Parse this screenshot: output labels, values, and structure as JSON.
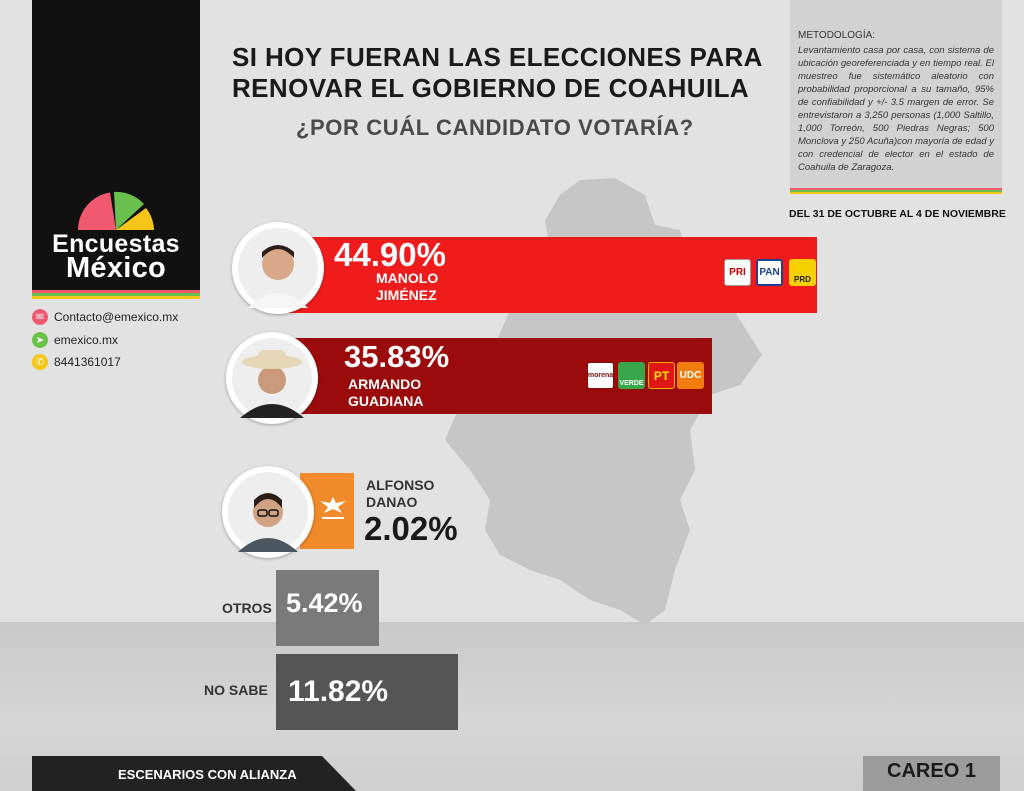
{
  "brand": {
    "name_line1": "Encuestas",
    "name_line2": "México",
    "colors": [
      "#f0596f",
      "#6ac04c",
      "#f5c518"
    ]
  },
  "contacts": [
    {
      "icon": "email-icon",
      "text": "Contacto@emexico.mx",
      "color": "#f0596f"
    },
    {
      "icon": "cursor-icon",
      "text": "emexico.mx",
      "color": "#6ac04c"
    },
    {
      "icon": "phone-icon",
      "text": "8441361017",
      "color": "#f5c518"
    }
  ],
  "title": {
    "line1": "SI HOY FUERAN LAS ELECCIONES PARA",
    "line2": "RENOVAR EL GOBIERNO DE COAHUILA",
    "question": "¿POR CUÁL CANDIDATO VOTARÍA?"
  },
  "methodology": {
    "heading": "METODOLOGÍA:",
    "text": "Levantamiento casa por casa, con sistema de ubicación georeferenciada y en tiempo real. El muestreo fue sistemático aleatorio con probabilidad proporcional a su tamaño, 95% de confiabilidad y +/- 3.5 margen de error. Se entrevistaron a 3,250 personas (1,000 Saltillo, 1,000 Torreón, 500 Piedras Negras; 500 Monclova y 250 Acuña)con mayoría de edad y con credencial de elector en el estado de Coahuila de Zaragoza.",
    "period": "DEL 31 DE OCTUBRE AL 4 DE NOVIEMBRE"
  },
  "chart_data": {
    "type": "bar",
    "categories": [
      "MANOLO JIMÉNEZ",
      "ARMANDO GUADIANA",
      "ALFONSO DANAO",
      "OTROS",
      "NO SABE"
    ],
    "values": [
      44.9,
      35.83,
      2.02,
      5.42,
      11.82
    ],
    "labels": [
      "44.90%",
      "35.83%",
      "2.02%",
      "5.42%",
      "11.82%"
    ],
    "colors": [
      "#f01c1c",
      "#9b0b0b",
      "#f08a2a",
      "#7a7a7a",
      "#555555"
    ],
    "candidates": [
      {
        "name_line1": "MANOLO",
        "name_line2": "JIMÉNEZ",
        "parties": [
          "PRI",
          "PAN",
          "PRD"
        ]
      },
      {
        "name_line1": "ARMANDO",
        "name_line2": "GUADIANA",
        "parties": [
          "morena",
          "VERDE",
          "PT",
          "UDC"
        ]
      },
      {
        "name_line1": "ALFONSO",
        "name_line2": "DANAO",
        "parties": [
          "MC"
        ]
      }
    ]
  },
  "footer": {
    "left": "ESCENARIOS CON ALIANZA",
    "right": "CAREO 1"
  }
}
